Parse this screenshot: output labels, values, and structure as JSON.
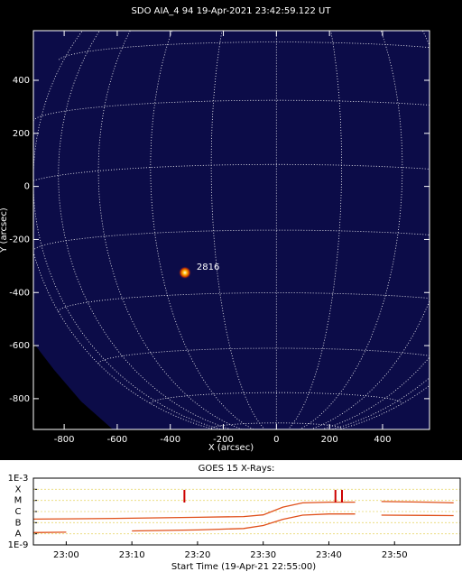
{
  "chart_data": [
    {
      "type": "image",
      "title": "SDO AIA_4 94 19-Apr-2021 23:42:59.122 UT",
      "x_label": "X (arcsec)",
      "y_label": "Y (arcsec)",
      "xlim": [
        -916,
        577
      ],
      "ylim": [
        -916,
        587
      ],
      "xticks": [
        -800,
        -600,
        -400,
        -200,
        0,
        200,
        400
      ],
      "yticks": [
        -800,
        -600,
        -400,
        -200,
        0,
        200,
        400
      ],
      "annotations": [
        {
          "text": "2816",
          "x": -345,
          "y": -325
        }
      ]
    },
    {
      "type": "line",
      "title": "GOES 15 X-Rays:",
      "x_label": "Start Time (19-Apr-21 22:55:00)",
      "log": true,
      "grid": true,
      "xlim": [
        "22:55",
        "00:00"
      ],
      "xticks": [
        "23:00",
        "23:10",
        "23:20",
        "23:30",
        "23:40",
        "23:50"
      ],
      "ylim": [
        1e-09,
        0.001
      ],
      "yticks": [
        {
          "value": 0.001,
          "label": "1E-3"
        },
        {
          "value": 0.0001,
          "label": "X"
        },
        {
          "value": 1e-05,
          "label": "M"
        },
        {
          "value": 1e-06,
          "label": "C"
        },
        {
          "value": 1e-07,
          "label": "B"
        },
        {
          "value": 1e-08,
          "label": "A"
        },
        {
          "value": 1e-09,
          "label": "1E-9"
        }
      ],
      "x": [
        "22:55",
        "23:00",
        "23:04",
        "23:10",
        "23:20",
        "23:27",
        "23:30",
        "23:33",
        "23:36",
        "23:40",
        "23:44",
        "23:45",
        "23:48",
        "23:55",
        "23:59"
      ],
      "series": [
        {
          "color": "#e0501a",
          "values": [
            2.1e-07,
            2.2e-07,
            2.3e-07,
            2.5e-07,
            3e-07,
            3.5e-07,
            5e-07,
            2.5e-06,
            6e-06,
            7e-06,
            7e-06,
            null,
            8e-06,
            7e-06,
            6e-06
          ]
        },
        {
          "color": "#e0501a",
          "values": [
            1.3e-08,
            1.4e-08,
            null,
            1.8e-08,
            2.2e-08,
            3e-08,
            5.5e-08,
            2e-07,
            4.7e-07,
            6e-07,
            6e-07,
            null,
            4.7e-07,
            4.5e-07,
            4.3e-07
          ]
        }
      ],
      "markers": {
        "color": "#cc0000",
        "x": [
          "23:18",
          "23:41",
          "23:42"
        ]
      }
    }
  ]
}
